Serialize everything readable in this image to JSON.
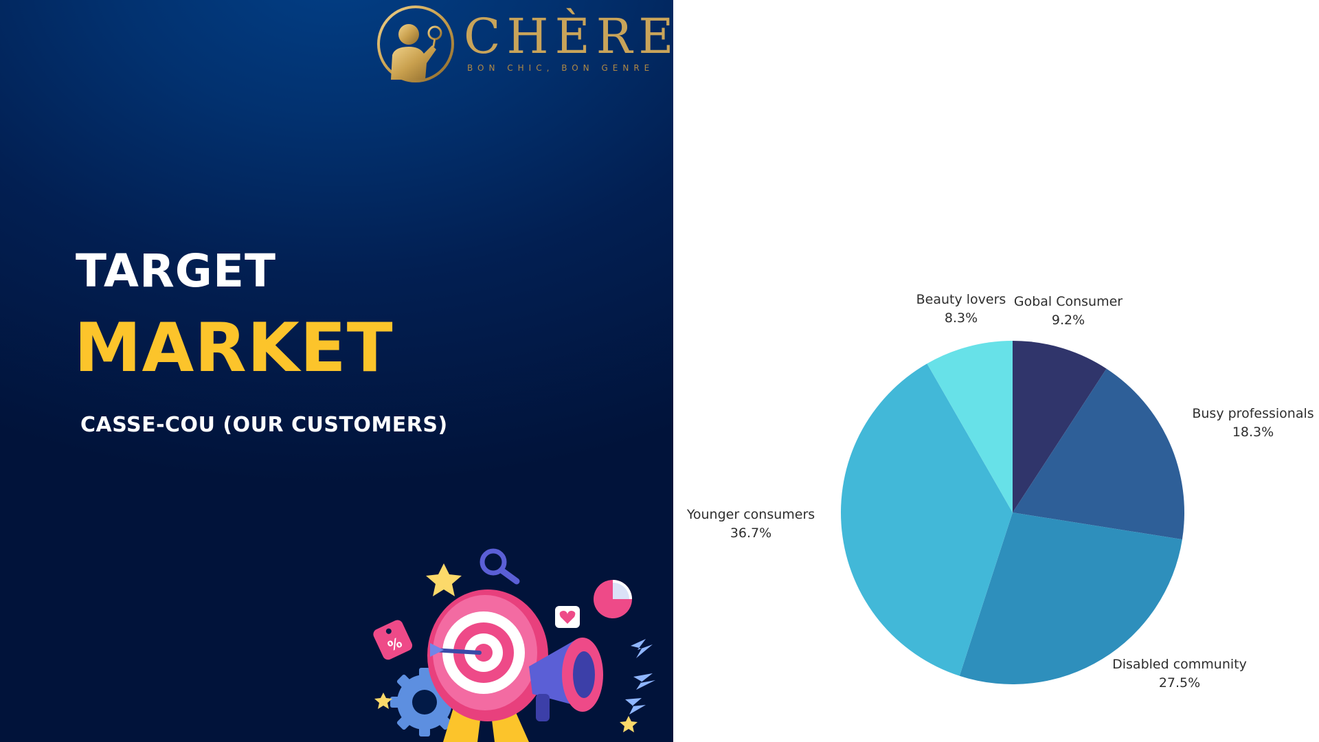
{
  "brand": {
    "name": "CHÈRE",
    "tagline": "BON CHIC, BON GENRE"
  },
  "heading": {
    "line1": "TARGET",
    "line2": "MARKET",
    "subtitle": "CASSE-COU (OUR CUSTOMERS)"
  },
  "colors": {
    "panel_dark": "#01133a",
    "panel_mid": "#02316f",
    "accent_yellow": "#fcc42b",
    "logo_gold": "#c9a45a"
  },
  "chart_data": {
    "type": "pie",
    "title": "",
    "start_angle_deg": 0,
    "direction": "clockwise",
    "slices": [
      {
        "label": "Gobal Consumer",
        "value": 9.2,
        "display": "9.2%",
        "color": "#30356b"
      },
      {
        "label": "Busy professionals",
        "value": 18.3,
        "display": "18.3%",
        "color": "#2e5f98"
      },
      {
        "label": "Disabled community",
        "value": 27.5,
        "display": "27.5%",
        "color": "#2e8fbc"
      },
      {
        "label": "Younger consumers",
        "value": 36.7,
        "display": "36.7%",
        "color": "#42b8d8"
      },
      {
        "label": "Beauty lovers",
        "value": 8.3,
        "display": "8.3%",
        "color": "#67e1e8"
      }
    ]
  }
}
